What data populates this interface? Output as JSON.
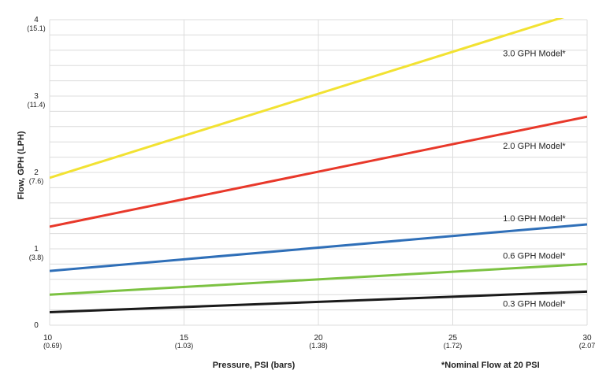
{
  "chart_data": {
    "type": "line",
    "title": "",
    "xlabel": "Pressure, PSI (bars)",
    "ylabel": "Flow, GPH (LPH)",
    "xlim": [
      10,
      30
    ],
    "ylim": [
      0,
      4
    ],
    "grid": true,
    "x_ticks": [
      {
        "value": 10,
        "label": "10",
        "sublabel": "(0.69)"
      },
      {
        "value": 15,
        "label": "15",
        "sublabel": "(1.03)"
      },
      {
        "value": 20,
        "label": "20",
        "sublabel": "(1.38)"
      },
      {
        "value": 25,
        "label": "25",
        "sublabel": "(1.72)"
      },
      {
        "value": 30,
        "label": "30",
        "sublabel": "(2.07"
      }
    ],
    "y_ticks": [
      {
        "value": 0,
        "label": "0",
        "sublabel": ""
      },
      {
        "value": 1,
        "label": "1",
        "sublabel": "(3.8)"
      },
      {
        "value": 2,
        "label": "2",
        "sublabel": "(7.6)"
      },
      {
        "value": 3,
        "label": "3",
        "sublabel": "(11.4)"
      },
      {
        "value": 4,
        "label": "4",
        "sublabel": "(15.1)"
      }
    ],
    "series": [
      {
        "name": "3.0 GPH Model*",
        "color": "#f2e232",
        "x": [
          10,
          30
        ],
        "y": [
          1.93,
          4.13
        ],
        "label_x": 29.2,
        "label_y": 3.52
      },
      {
        "name": "2.0 GPH Model*",
        "color": "#e8382a",
        "x": [
          10,
          30
        ],
        "y": [
          1.29,
          2.73
        ],
        "label_x": 29.2,
        "label_y": 2.31
      },
      {
        "name": "1.0 GPH Model*",
        "color": "#2f6fb8",
        "x": [
          10,
          30
        ],
        "y": [
          0.71,
          1.32
        ],
        "label_x": 29.2,
        "label_y": 1.36
      },
      {
        "name": "0.6 GPH Model*",
        "color": "#7cc242",
        "x": [
          10,
          30
        ],
        "y": [
          0.4,
          0.8
        ],
        "label_x": 29.2,
        "label_y": 0.87
      },
      {
        "name": "0.3 GPH Model*",
        "color": "#1a1a1a",
        "x": [
          10,
          30
        ],
        "y": [
          0.17,
          0.44
        ],
        "label_x": 29.2,
        "label_y": 0.24
      }
    ],
    "footnote": "*Nominal Flow at 20 PSI"
  }
}
